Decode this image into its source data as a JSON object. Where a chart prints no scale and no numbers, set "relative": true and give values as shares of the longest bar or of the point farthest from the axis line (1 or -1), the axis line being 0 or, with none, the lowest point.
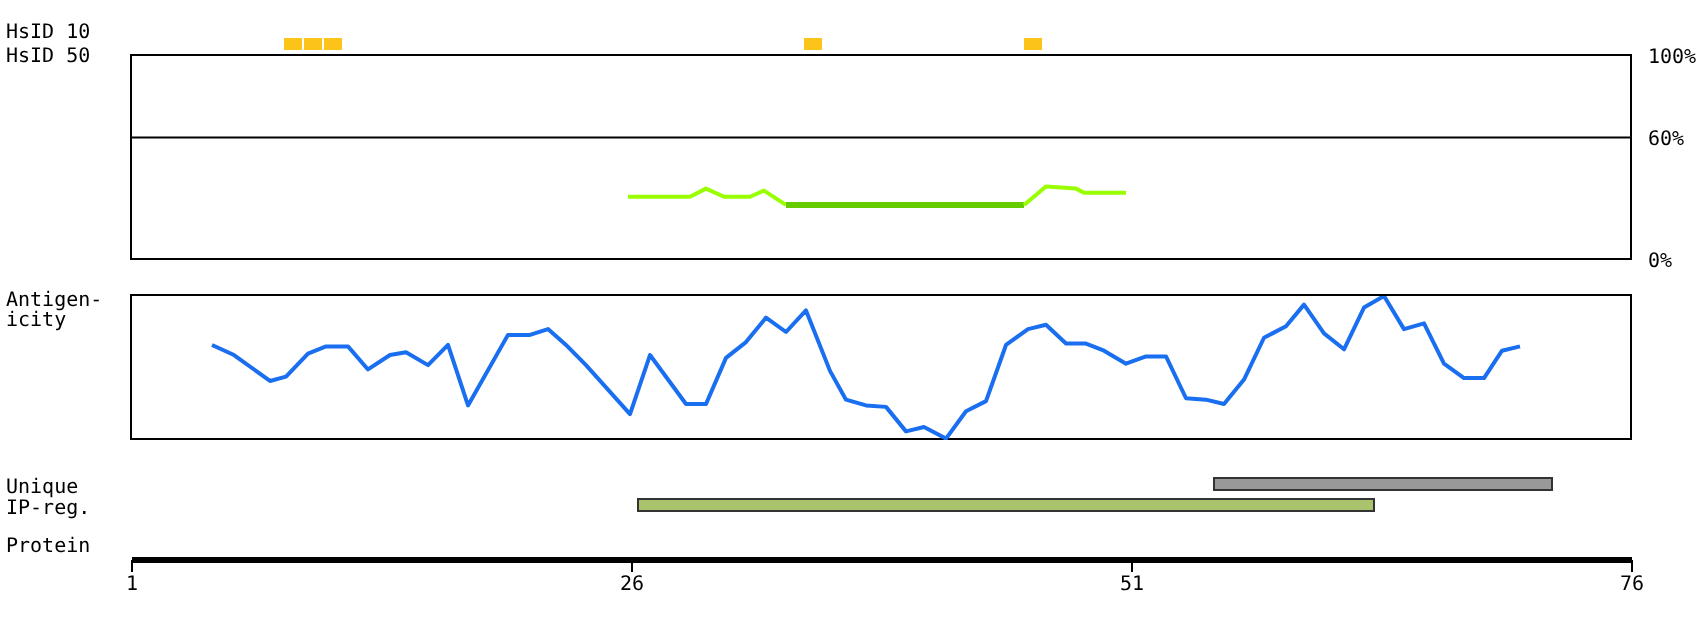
{
  "chart_data": [
    {
      "type": "bar",
      "title": "HsID 10",
      "x": [
        9,
        10,
        11,
        35,
        46
      ],
      "values": [
        1,
        1,
        1,
        1,
        1
      ],
      "color": "#fcc419",
      "relative": true,
      "xlim": [
        1,
        76
      ],
      "tick_labels": false
    },
    {
      "type": "line",
      "title": "HsID 50",
      "series": [
        {
          "color": "#99ff00",
          "x": [
            25.8,
            28.9,
            29.7,
            30.6,
            31.9,
            32.6,
            33.7
          ],
          "values": [
            31,
            31,
            35,
            31,
            31,
            34,
            27
          ]
        },
        {
          "color": "#66cc00",
          "x": [
            33.7,
            45.6
          ],
          "values": [
            27,
            27
          ]
        },
        {
          "color": "#99ff00",
          "x": [
            45.6,
            46.7,
            48.2,
            48.6,
            50.7
          ],
          "values": [
            27,
            36,
            35,
            33,
            33
          ]
        }
      ],
      "xlim": [
        1,
        76
      ],
      "ylim": [
        0,
        100
      ],
      "yticks": [
        {
          "value": 0,
          "label": "0%"
        },
        {
          "value": 60,
          "label": "60%"
        },
        {
          "value": 100,
          "label": "100%"
        }
      ],
      "ref_lines": [
        {
          "axis": "y",
          "value": 60
        }
      ],
      "tick_labels": "y"
    },
    {
      "type": "line",
      "title": "Antigen-\nicity",
      "color": "#1a6ef0",
      "relative": true,
      "xlim": [
        1,
        76
      ],
      "tick_labels": false,
      "x": [
        5.0,
        6.1,
        7.9,
        8.7,
        9.8,
        10.7,
        11.8,
        12.8,
        13.9,
        14.7,
        15.8,
        16.8,
        17.8,
        19.8,
        20.9,
        21.8,
        22.7,
        23.7,
        25.9,
        26.9,
        28.7,
        29.7,
        30.7,
        31.7,
        32.7,
        33.7,
        34.7,
        35.9,
        36.7,
        37.7,
        38.7,
        39.7,
        40.6,
        41.7,
        42.7,
        43.7,
        44.7,
        45.8,
        46.7,
        47.7,
        48.7,
        49.6,
        50.7,
        51.7,
        52.7,
        53.7,
        54.7,
        55.6,
        56.6,
        57.6,
        58.7,
        59.6,
        60.6,
        61.6,
        62.6,
        63.6,
        64.6,
        65.6,
        66.6,
        67.6,
        68.6,
        69.5,
        70.4
      ],
      "values": [
        0.66,
        0.59,
        0.41,
        0.44,
        0.6,
        0.65,
        0.65,
        0.49,
        0.59,
        0.61,
        0.52,
        0.66,
        0.24,
        0.73,
        0.73,
        0.77,
        0.66,
        0.52,
        0.18,
        0.59,
        0.25,
        0.25,
        0.57,
        0.68,
        0.85,
        0.75,
        0.9,
        0.48,
        0.28,
        0.24,
        0.23,
        0.06,
        0.09,
        0.01,
        0.2,
        0.27,
        0.66,
        0.77,
        0.8,
        0.67,
        0.67,
        0.62,
        0.53,
        0.58,
        0.58,
        0.29,
        0.28,
        0.25,
        0.42,
        0.71,
        0.79,
        0.94,
        0.74,
        0.63,
        0.92,
        1.0,
        0.77,
        0.81,
        0.53,
        0.43,
        0.43,
        0.62,
        0.65
      ]
    },
    {
      "type": "bar",
      "orientation": "horizontal",
      "categories": [
        "Unique",
        "IP-reg."
      ],
      "base": [
        55.1,
        26.3
      ],
      "values": [
        16.9,
        36.8
      ],
      "colors": [
        "#999999",
        "#a9c36c"
      ],
      "xlim": [
        1,
        76
      ],
      "xticks": [
        1,
        26,
        51,
        76
      ],
      "xlabel": "Protein"
    }
  ]
}
